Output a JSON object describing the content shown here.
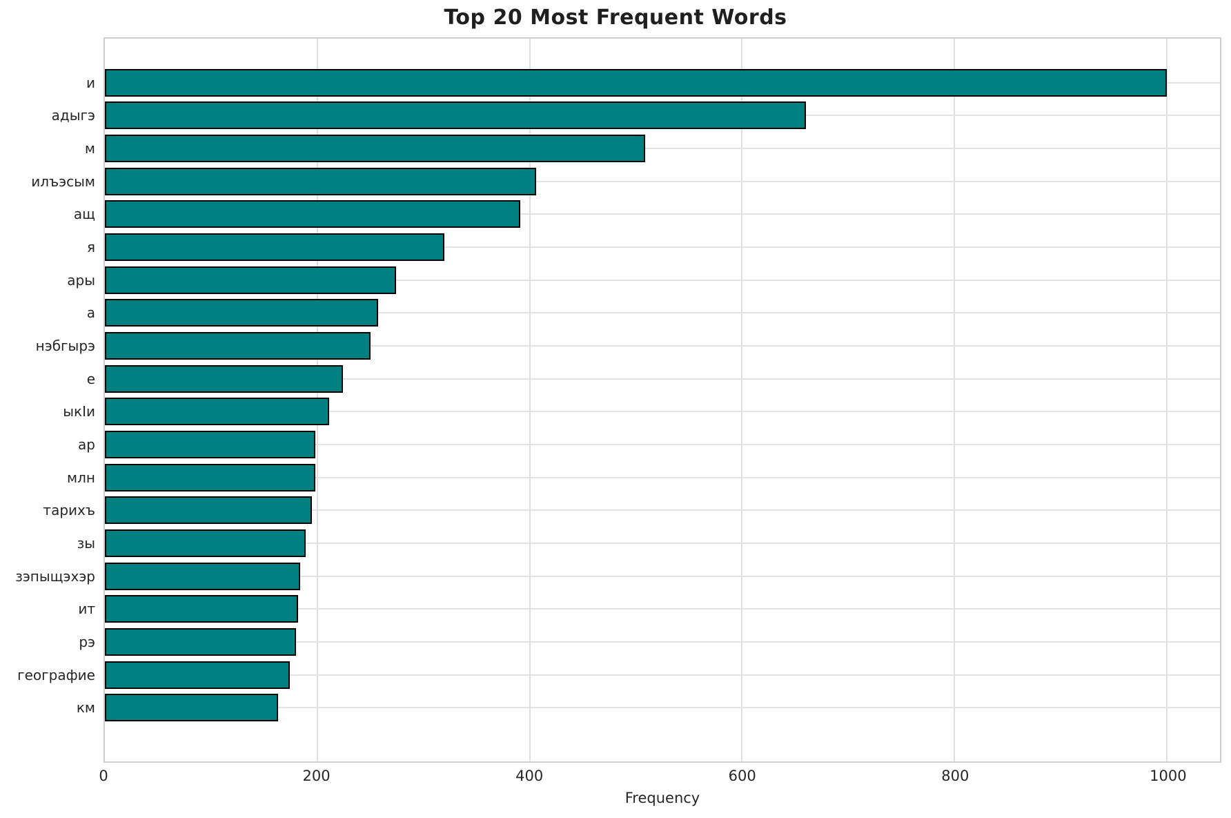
{
  "chart_data": {
    "type": "bar",
    "orientation": "horizontal",
    "title": "Top 20 Most Frequent Words",
    "xlabel": "Frequency",
    "ylabel": "",
    "categories": [
      "и",
      "адыгэ",
      "м",
      "илъэсым",
      "ащ",
      "я",
      "ары",
      "а",
      "нэбгырэ",
      "е",
      "ыкIи",
      "ар",
      "млн",
      "тарихъ",
      "зы",
      "зэпыщэхэр",
      "ит",
      "рэ",
      "географие",
      "км"
    ],
    "values": [
      1000,
      660,
      509,
      406,
      391,
      320,
      274,
      257,
      250,
      224,
      211,
      198,
      198,
      195,
      189,
      184,
      182,
      180,
      174,
      163
    ],
    "xlim": [
      0,
      1050
    ],
    "xticks": [
      0,
      200,
      400,
      600,
      800,
      1000
    ],
    "grid": true,
    "legend": "none",
    "bar_color": "#008080",
    "bar_edge_color": "#000000",
    "grid_color": "#e0e0e0",
    "text_color": "#262626"
  }
}
